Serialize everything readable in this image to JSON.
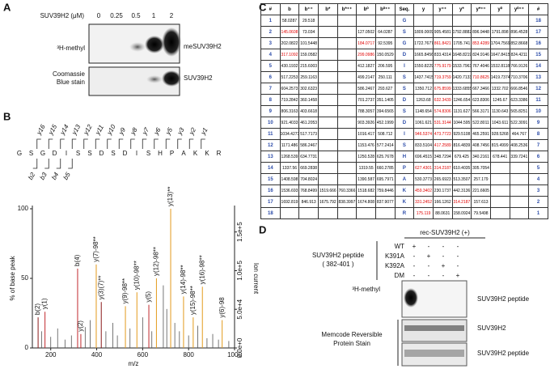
{
  "panels": [
    "A",
    "B",
    "C",
    "D"
  ],
  "panel_a": {
    "unit_label": "SUV39H2 (μM)",
    "concentrations": [
      0,
      0.25,
      0.5,
      1,
      2
    ],
    "left_labels": [
      "³H-methyl",
      "Coomassie",
      "Blue stain"
    ],
    "right_labels": [
      "meSUV39H2",
      "SUV39H2"
    ]
  },
  "panel_b": {
    "sequence": [
      "G",
      "S",
      "G",
      "D",
      "I",
      "S",
      "S",
      "D",
      "S",
      "D",
      "I",
      "S",
      "H",
      "P",
      "A",
      "K",
      "K",
      "R"
    ],
    "y_ions": [
      "y16",
      "y15",
      "y14",
      "y13",
      "y12",
      "y11",
      "y10",
      "y9",
      "y8",
      "y7",
      "y6",
      "y5",
      "y3",
      "y2",
      "y1"
    ],
    "b_ions": [
      "b2",
      "b3",
      "b4",
      "b5"
    ],
    "spectrum": {
      "xlabel": "m/z",
      "ylabel": "% of base peak",
      "y2label": "Ion current",
      "xlim": [
        120,
        1000
      ],
      "xticks": [
        200,
        400,
        600,
        800,
        1000
      ],
      "ylim": [
        0,
        100
      ],
      "yticks": [
        0,
        50,
        100
      ],
      "y2lim": [
        0,
        180000
      ],
      "y2ticks": [
        {
          "value": 0,
          "label": "0.0e+0"
        },
        {
          "value": 50000,
          "label": "5.0e+4"
        },
        {
          "value": 100000,
          "label": "1.0e+5"
        },
        {
          "value": 150000,
          "label": "1.5e+5"
        }
      ],
      "peaks": [
        {
          "mz": 145,
          "intensity": 22,
          "label": "b(2)",
          "color": "#8b1a1a"
        },
        {
          "mz": 175,
          "intensity": 26,
          "label": "y(1)",
          "color": "#c0282d"
        },
        {
          "mz": 317,
          "intensity": 57,
          "label": "b(4)",
          "color": "#c0282d"
        },
        {
          "mz": 331,
          "intensity": 10,
          "label": "y(2)",
          "color": "#c0282d"
        },
        {
          "mz": 398,
          "intensity": 60,
          "label": "y(7)-98**",
          "color": "#e39a1c"
        },
        {
          "mz": 420,
          "intensity": 33,
          "label": "y(3)(7)**",
          "color": "#8b1a1a"
        },
        {
          "mz": 525,
          "intensity": 30,
          "label": "y(9)-98**",
          "color": "#e39a1c"
        },
        {
          "mz": 575,
          "intensity": 40,
          "label": "y(10)-98**",
          "color": "#e39a1c"
        },
        {
          "mz": 627,
          "intensity": 31,
          "label": "y(5)",
          "color": "#c0282d"
        },
        {
          "mz": 660,
          "intensity": 50,
          "label": "y(12)-98**",
          "color": "#e39a1c"
        },
        {
          "mz": 722,
          "intensity": 100,
          "label": "y(13)**",
          "color": "#e39a1c"
        },
        {
          "mz": 778,
          "intensity": 37,
          "label": "y(14)-98**",
          "color": "#e39a1c"
        },
        {
          "mz": 820,
          "intensity": 22,
          "label": "y(15)-98**",
          "color": "#e39a1c"
        },
        {
          "mz": 860,
          "intensity": 44,
          "label": "y(16)-98**",
          "color": "#e39a1c"
        },
        {
          "mz": 946,
          "intensity": 20,
          "label": "y(6)-98",
          "color": "#e39a1c"
        }
      ],
      "other_peaks": {
        "color": "#555555",
        "mz": [
          160,
          200,
          230,
          262,
          290,
          350,
          372,
          440,
          470,
          490,
          545,
          600,
          640,
          690,
          705,
          740,
          760,
          800,
          840,
          880,
          905,
          930,
          975
        ],
        "intensity": [
          12,
          8,
          14,
          6,
          9,
          15,
          20,
          12,
          18,
          9,
          14,
          22,
          12,
          45,
          28,
          18,
          12,
          9,
          16,
          7,
          10,
          6,
          5
        ]
      }
    }
  },
  "panel_c": {
    "header": [
      "#",
      "b",
      "b⁺⁺",
      "b*",
      "b*⁺⁺",
      "b⁰",
      "b⁰⁺⁺",
      "Seq.",
      "y",
      "y⁺⁺",
      "y*",
      "y*⁺⁺",
      "y⁰",
      "y⁰⁺⁺",
      "#"
    ],
    "rows": [
      [
        "1",
        "58.0287",
        "29.518",
        null,
        null,
        null,
        null,
        "G",
        null,
        null,
        null,
        null,
        null,
        null,
        "18"
      ],
      [
        "2",
        {
          "text": "145.0608",
          "color": "#e00000"
        },
        "73.034",
        null,
        null,
        "127.0502",
        "64.0287",
        "S",
        "1809.0009",
        "905.4581",
        "1792.8882",
        "896.9448",
        "1791.898",
        "896.4528",
        "17"
      ],
      [
        "3",
        "202.0822",
        "101.5448",
        null,
        null,
        {
          "text": "184.0717",
          "color": "#e00000"
        },
        "92.5395",
        "G",
        "1722.7677",
        {
          "text": "861.8421",
          "color": "#e00000"
        },
        "1705.741",
        {
          "text": "853.4289",
          "color": "#e00000"
        },
        "1704.7569",
        "852.8668",
        "16"
      ],
      [
        "4",
        {
          "text": "317.1092",
          "color": "#e00000"
        },
        "159.0582",
        null,
        null,
        {
          "text": "299.0986",
          "color": "#e00000"
        },
        "150.0529",
        "D",
        "1665.8456",
        "833.4314",
        "1648.8219",
        "824.9146",
        "1647.8415",
        "824.4211",
        "15"
      ],
      [
        "5",
        "430.1932",
        "215.6003",
        null,
        null,
        "412.1827",
        "206.595",
        "I",
        "1550.8229",
        {
          "text": "775.9179",
          "color": "#e00000"
        },
        "1533.7963",
        "767.4046",
        "1532.8118",
        "766.9126",
        "14"
      ],
      [
        "6",
        "517.2253",
        "259.1163",
        null,
        null,
        "499.2147",
        "250.111",
        "S",
        "1437.7415",
        {
          "text": "719.3759",
          "color": "#e00000"
        },
        "1420.7133",
        {
          "text": "710.8625",
          "color": "#e00000"
        },
        "1419.7374",
        "710.3706",
        "13"
      ],
      [
        "7",
        "604.2573",
        "302.6323",
        null,
        null,
        "586.2467",
        "293.627",
        "S",
        "1350.712",
        {
          "text": "675.8599",
          "color": "#e00000"
        },
        "1333.6855",
        "667.3466",
        "1332.702",
        "666.8546",
        "12"
      ],
      [
        "8",
        "719.2842",
        "360.1458",
        null,
        null,
        "701.2737",
        "351.1405",
        "D",
        "1263.68",
        {
          "text": "632.3439",
          "color": "#e00000"
        },
        "1246.654",
        "623.8306",
        "1245.67",
        "623.3386",
        "11"
      ],
      [
        "9",
        "806.3163",
        "403.6618",
        null,
        null,
        "788.3057",
        "394.6565",
        "S",
        "1148.654",
        {
          "text": "574.8306",
          "color": "#e00000"
        },
        "1131.627",
        "566.3171",
        "1130.643",
        "565.8251",
        "10"
      ],
      [
        "10",
        "921.4033",
        "461.2053",
        null,
        null,
        "903.3926",
        "452.1999",
        "D",
        "1061.621",
        {
          "text": "531.3144",
          "color": "#e00000"
        },
        "1044.595",
        "522.8011",
        "1043.611",
        "522.3091",
        "9"
      ],
      [
        "11",
        "1034.4273",
        "517.7173",
        null,
        null,
        "1016.417",
        "508.712",
        "I",
        {
          "text": "946.5374",
          "color": "#e00000"
        },
        {
          "text": "473.7723",
          "color": "#e00000"
        },
        "929.5108",
        "465.2591",
        "928.5268",
        "464.767",
        "8"
      ],
      [
        "12",
        "1171.486",
        "586.2467",
        null,
        null,
        "1153.476",
        "577.2414",
        "S",
        "833.5104",
        {
          "text": "417.2589",
          "color": "#e00000"
        },
        "816.4839",
        "408.7456",
        "815.4999",
        "408.2536",
        "7"
      ],
      [
        "13",
        "1268.539",
        "634.7731",
        null,
        null,
        "1250.528",
        "625.7678",
        "H",
        "696.4515",
        "348.7294",
        "679.425",
        "340.2161",
        "678.441",
        "339.7241",
        "6"
      ],
      [
        "14",
        "1337.56",
        "669.2838",
        null,
        null,
        "1319.55",
        "660.2785",
        "P",
        {
          "text": "627.4301",
          "color": "#e00000"
        },
        {
          "text": "314.2187",
          "color": "#e00000"
        },
        "610.4035",
        "305.7054",
        null,
        null,
        "5"
      ],
      [
        "15",
        "1408.598",
        "704.8024",
        null,
        null,
        "1390.587",
        "695.7971",
        "A",
        "530.3773",
        "265.6923",
        "513.3507",
        "257.179",
        null,
        null,
        "4"
      ],
      [
        "16",
        "1536.693",
        "768.8499",
        "1519.666",
        "760.3366",
        "1518.682",
        "759.8446",
        "K",
        {
          "text": "459.3402",
          "color": "#e00000"
        },
        "230.1737",
        "442.3136",
        "221.6605",
        null,
        null,
        "3"
      ],
      [
        "17",
        "1692.819",
        "846.913",
        "1675.792",
        "838.3997",
        "1674.808",
        "837.9077",
        "K",
        {
          "text": "331.2452",
          "color": "#e00000"
        },
        "166.1262",
        {
          "text": "314.2187",
          "color": "#e00000"
        },
        "157.613",
        null,
        null,
        "2"
      ],
      [
        "18",
        null,
        null,
        null,
        null,
        null,
        null,
        "R",
        {
          "text": "175.119",
          "color": "#e00000"
        },
        "88.0631",
        "158.0924",
        "79.5498",
        null,
        null,
        "1"
      ]
    ]
  },
  "panel_d": {
    "header": "rec-SUV39H2 (+)",
    "variants": [
      "WT",
      "K391A",
      "K392A",
      "DM"
    ],
    "signs": [
      [
        "+",
        "-",
        "-",
        "-"
      ],
      [
        "-",
        "+",
        "-",
        "-"
      ],
      [
        "-",
        "-",
        "+",
        "-"
      ],
      [
        "-",
        "-",
        "-",
        "+"
      ]
    ],
    "peptide_label": [
      "SUV39H2 peptide",
      "( 382-401 )"
    ],
    "methyl_label": "³H-methyl",
    "stain_label": [
      "Memcode Reversible",
      "Protein Stain"
    ],
    "right_labels": [
      "SUV39H2 peptide",
      "SUV39H2",
      "SUV39H2 peptide"
    ]
  }
}
